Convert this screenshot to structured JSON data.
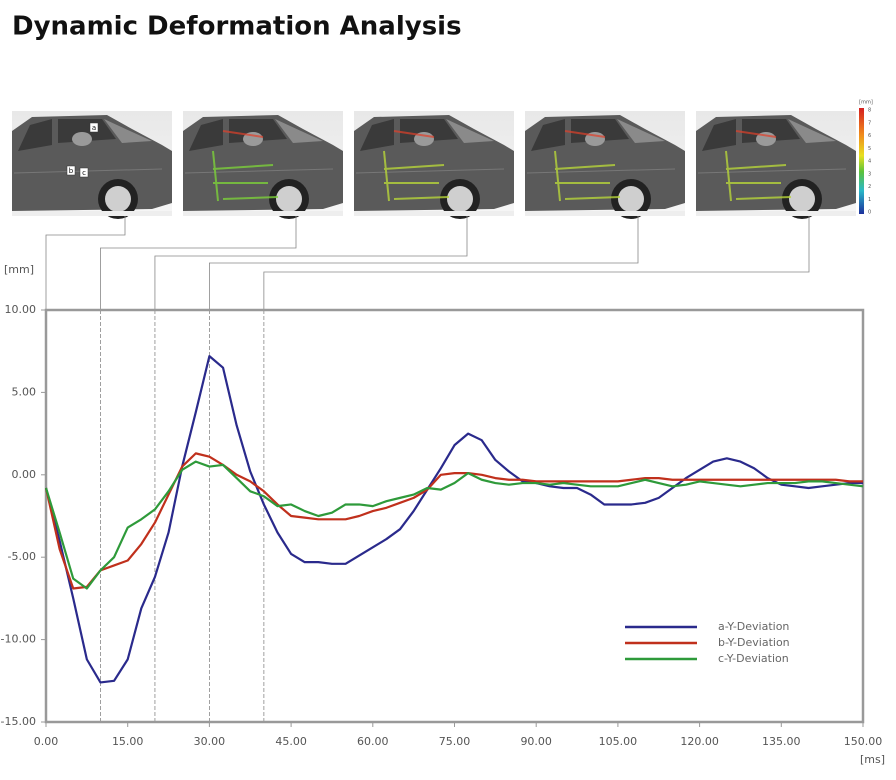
{
  "chart_data": {
    "type": "line",
    "title": "Dynamic Deformation Analysis",
    "y_label": "[mm]",
    "x_label": "[ms]",
    "xlim": [
      0,
      150
    ],
    "ylim": [
      -15,
      10
    ],
    "xticks": [
      {
        "value": 0,
        "label": "0.00"
      },
      {
        "value": 15,
        "label": "15.00"
      },
      {
        "value": 30,
        "label": "30.00"
      },
      {
        "value": 45,
        "label": "45.00"
      },
      {
        "value": 60,
        "label": "60.00"
      },
      {
        "value": 75,
        "label": "75.00"
      },
      {
        "value": 90,
        "label": "90.00"
      },
      {
        "value": 105,
        "label": "105.00"
      },
      {
        "value": 120,
        "label": "120.00"
      },
      {
        "value": 135,
        "label": "135.00"
      },
      {
        "value": 150,
        "label": "150.00"
      }
    ],
    "yticks": [
      {
        "value": 10,
        "label": "10.00"
      },
      {
        "value": 5,
        "label": "5.00"
      },
      {
        "value": 0,
        "label": "0.00"
      },
      {
        "value": -5,
        "label": "-5.00"
      },
      {
        "value": -10,
        "label": "-10.00"
      },
      {
        "value": -15,
        "label": "-15.00"
      }
    ],
    "time_markers": [
      0,
      10,
      20,
      30,
      40
    ],
    "point_labels": [
      "a",
      "b",
      "c"
    ],
    "colorbar": {
      "label": "[mm]",
      "ticks": [
        8,
        7,
        6,
        5,
        4,
        3,
        2,
        1,
        0
      ]
    },
    "x": [
      0,
      2.5,
      5,
      7.5,
      10,
      12.5,
      15,
      17.5,
      20,
      22.5,
      25,
      27.5,
      30,
      32.5,
      35,
      37.5,
      40,
      42.5,
      45,
      47.5,
      50,
      52.5,
      55,
      57.5,
      60,
      62.5,
      65,
      67.5,
      70,
      72.5,
      75,
      77.5,
      80,
      82.5,
      85,
      87.5,
      90,
      92.5,
      95,
      97.5,
      100,
      102.5,
      105,
      107.5,
      110,
      112.5,
      115,
      117.5,
      120,
      122.5,
      125,
      127.5,
      130,
      132.5,
      135,
      137.5,
      140,
      142.5,
      145,
      147.5,
      150
    ],
    "series": [
      {
        "name": "a-Y-Deviation",
        "color": "#2a2a8c",
        "values": [
          -0.8,
          -4,
          -7.5,
          -11.2,
          -12.6,
          -12.5,
          -11.2,
          -8.1,
          -6.2,
          -3.5,
          0.5,
          3.8,
          7.2,
          6.5,
          3,
          0.2,
          -1.8,
          -3.5,
          -4.8,
          -5.3,
          -5.3,
          -5.4,
          -5.4,
          -4.9,
          -4.4,
          -3.9,
          -3.3,
          -2.2,
          -0.9,
          0.4,
          1.8,
          2.5,
          2.1,
          0.9,
          0.2,
          -0.4,
          -0.5,
          -0.7,
          -0.8,
          -0.8,
          -1.2,
          -1.8,
          -1.8,
          -1.8,
          -1.7,
          -1.4,
          -0.8,
          -0.2,
          0.3,
          0.8,
          1,
          0.8,
          0.4,
          -0.2,
          -0.6,
          -0.7,
          -0.8,
          -0.7,
          -0.6,
          -0.5,
          -0.5
        ]
      },
      {
        "name": "b-Y-Deviation",
        "color": "#c0301c",
        "values": [
          -0.8,
          -4.5,
          -6.9,
          -6.8,
          -5.8,
          -5.5,
          -5.2,
          -4.2,
          -2.9,
          -1.2,
          0.5,
          1.3,
          1.1,
          0.6,
          0,
          -0.4,
          -1,
          -1.8,
          -2.5,
          -2.6,
          -2.7,
          -2.7,
          -2.7,
          -2.5,
          -2.2,
          -2,
          -1.7,
          -1.4,
          -0.9,
          0,
          0.1,
          0.1,
          0,
          -0.2,
          -0.3,
          -0.3,
          -0.4,
          -0.4,
          -0.4,
          -0.4,
          -0.4,
          -0.4,
          -0.4,
          -0.3,
          -0.2,
          -0.2,
          -0.3,
          -0.3,
          -0.3,
          -0.3,
          -0.3,
          -0.3,
          -0.3,
          -0.3,
          -0.3,
          -0.3,
          -0.3,
          -0.3,
          -0.3,
          -0.4,
          -0.4
        ]
      },
      {
        "name": "c-Y-Deviation",
        "color": "#2e9a3a",
        "values": [
          -0.8,
          -3.5,
          -6.3,
          -6.9,
          -5.8,
          -5,
          -3.2,
          -2.7,
          -2.1,
          -1,
          0.3,
          0.8,
          0.5,
          0.6,
          -0.2,
          -1,
          -1.3,
          -1.9,
          -1.8,
          -2.2,
          -2.5,
          -2.3,
          -1.8,
          -1.8,
          -1.9,
          -1.6,
          -1.4,
          -1.2,
          -0.8,
          -0.9,
          -0.5,
          0.1,
          -0.3,
          -0.5,
          -0.6,
          -0.5,
          -0.5,
          -0.6,
          -0.5,
          -0.6,
          -0.7,
          -0.7,
          -0.7,
          -0.5,
          -0.3,
          -0.5,
          -0.7,
          -0.6,
          -0.4,
          -0.5,
          -0.6,
          -0.7,
          -0.6,
          -0.5,
          -0.5,
          -0.5,
          -0.4,
          -0.4,
          -0.5,
          -0.6,
          -0.7
        ]
      }
    ]
  }
}
